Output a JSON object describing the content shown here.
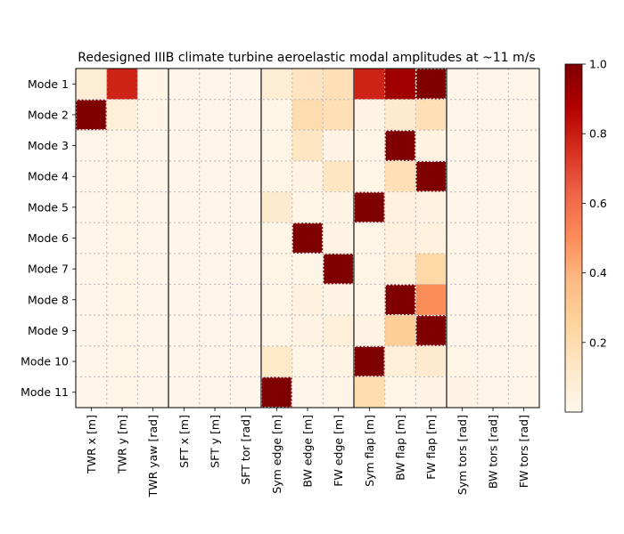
{
  "chart_data": {
    "type": "heatmap",
    "title": "Redesigned IIIB climate turbine aeroelastic modal amplitudes at ~11 m/s",
    "xlabel": "",
    "ylabel": "",
    "x_categories": [
      "TWR x [m]",
      "TWR y [m]",
      "TWR yaw [rad]",
      "SFT x [m]",
      "SFT y [m]",
      "SFT tor [rad]",
      "Sym edge [m]",
      "BW edge [m]",
      "FW edge [m]",
      "Sym flap [m]",
      "BW flap [m]",
      "FW flap [m]",
      "Sym tors [rad]",
      "BW tors [rad]",
      "FW tors [rad]"
    ],
    "y_categories": [
      "Mode 1",
      "Mode 2",
      "Mode 3",
      "Mode 4",
      "Mode 5",
      "Mode 6",
      "Mode 7",
      "Mode 8",
      "Mode 9",
      "Mode 10",
      "Mode 11"
    ],
    "values": [
      [
        0.08,
        0.78,
        0.02,
        0.01,
        0.01,
        0.01,
        0.08,
        0.15,
        0.18,
        0.78,
        0.92,
        1.0,
        0.01,
        0.01,
        0.01
      ],
      [
        1.0,
        0.07,
        0.02,
        0.01,
        0.01,
        0.01,
        0.02,
        0.2,
        0.18,
        0.03,
        0.1,
        0.18,
        0.01,
        0.01,
        0.01
      ],
      [
        0.01,
        0.02,
        0.01,
        0.01,
        0.01,
        0.01,
        0.02,
        0.14,
        0.03,
        0.02,
        1.0,
        0.04,
        0.01,
        0.01,
        0.01
      ],
      [
        0.01,
        0.02,
        0.01,
        0.01,
        0.01,
        0.01,
        0.02,
        0.03,
        0.14,
        0.02,
        0.18,
        1.0,
        0.01,
        0.01,
        0.01
      ],
      [
        0.01,
        0.02,
        0.01,
        0.01,
        0.01,
        0.01,
        0.1,
        0.02,
        0.03,
        1.0,
        0.05,
        0.04,
        0.01,
        0.01,
        0.01
      ],
      [
        0.01,
        0.02,
        0.01,
        0.01,
        0.01,
        0.01,
        0.02,
        1.0,
        0.03,
        0.02,
        0.05,
        0.05,
        0.01,
        0.01,
        0.01
      ],
      [
        0.01,
        0.02,
        0.01,
        0.01,
        0.01,
        0.01,
        0.02,
        0.02,
        1.0,
        0.02,
        0.07,
        0.22,
        0.01,
        0.01,
        0.01
      ],
      [
        0.01,
        0.02,
        0.01,
        0.01,
        0.01,
        0.01,
        0.02,
        0.05,
        0.03,
        0.02,
        1.0,
        0.5,
        0.01,
        0.01,
        0.01
      ],
      [
        0.01,
        0.02,
        0.01,
        0.01,
        0.01,
        0.01,
        0.02,
        0.03,
        0.07,
        0.03,
        0.28,
        1.0,
        0.01,
        0.01,
        0.01
      ],
      [
        0.01,
        0.02,
        0.01,
        0.01,
        0.01,
        0.01,
        0.12,
        0.02,
        0.03,
        1.0,
        0.07,
        0.1,
        0.02,
        0.01,
        0.01
      ],
      [
        0.01,
        0.02,
        0.01,
        0.01,
        0.01,
        0.01,
        1.0,
        0.01,
        0.02,
        0.2,
        0.02,
        0.03,
        0.03,
        0.01,
        0.01
      ]
    ],
    "highlight_cells": [
      [
        1,
        0
      ],
      [
        0,
        11
      ],
      [
        2,
        10
      ],
      [
        3,
        11
      ],
      [
        4,
        9
      ],
      [
        5,
        7
      ],
      [
        6,
        8
      ],
      [
        7,
        10
      ],
      [
        8,
        11
      ],
      [
        9,
        9
      ],
      [
        10,
        6
      ]
    ],
    "group_dividers_after_columns": [
      2,
      5,
      8,
      11
    ],
    "colormap": "OrRd",
    "colorbar": {
      "min": 0,
      "max": 1.0,
      "ticks": [
        "0.2",
        "0.4",
        "0.6",
        "0.8",
        "1.0"
      ],
      "tick_values": [
        0.2,
        0.4,
        0.6,
        0.8,
        1.0
      ]
    },
    "grid": true,
    "grid_style": "dotted",
    "colors": {
      "divider": "#4d4d4d",
      "grid": "#bfbfbf",
      "highlight_border": "#ffffff"
    }
  }
}
